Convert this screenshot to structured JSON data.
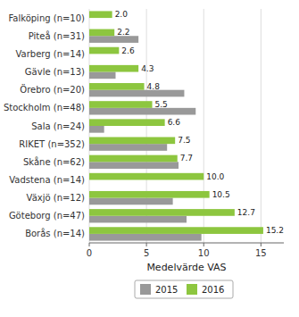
{
  "chart_data": {
    "type": "bar",
    "orientation": "horizontal",
    "categories": [
      "Falköping (n=10)",
      "Piteå (n=31)",
      "Varberg (n=14)",
      "Gävle (n=13)",
      "Örebro (n=20)",
      "Stockholm (n=48)",
      "Sala (n=24)",
      "RIKET (n=352)",
      "Skåne (n=62)",
      "Vadstena (n=14)",
      "Växjö (n=12)",
      "Göteborg (n=47)",
      "Borås (n=14)"
    ],
    "series": [
      {
        "name": "2015",
        "color": "#999999",
        "values": [
          0.0,
          4.3,
          0.0,
          2.3,
          8.3,
          9.3,
          1.3,
          6.8,
          7.8,
          0.0,
          7.3,
          8.5,
          9.8
        ]
      },
      {
        "name": "2016",
        "color": "#8dc63f",
        "values": [
          2.0,
          2.2,
          2.6,
          4.3,
          4.8,
          5.5,
          6.6,
          7.5,
          7.7,
          10.0,
          10.5,
          12.7,
          15.2
        ],
        "data_labels": true,
        "value_labels": [
          "2.0",
          "2.2",
          "2.6",
          "4.3",
          "4.8",
          "5.5",
          "6.6",
          "7.5",
          "7.7",
          "10.0",
          "10.5",
          "12.7",
          "15.2"
        ]
      }
    ],
    "xlabel": "Medelvärde VAS",
    "xlim": [
      0,
      17
    ],
    "xticks": [
      0,
      5,
      10,
      15
    ],
    "grid": true,
    "legend": "bottom"
  }
}
